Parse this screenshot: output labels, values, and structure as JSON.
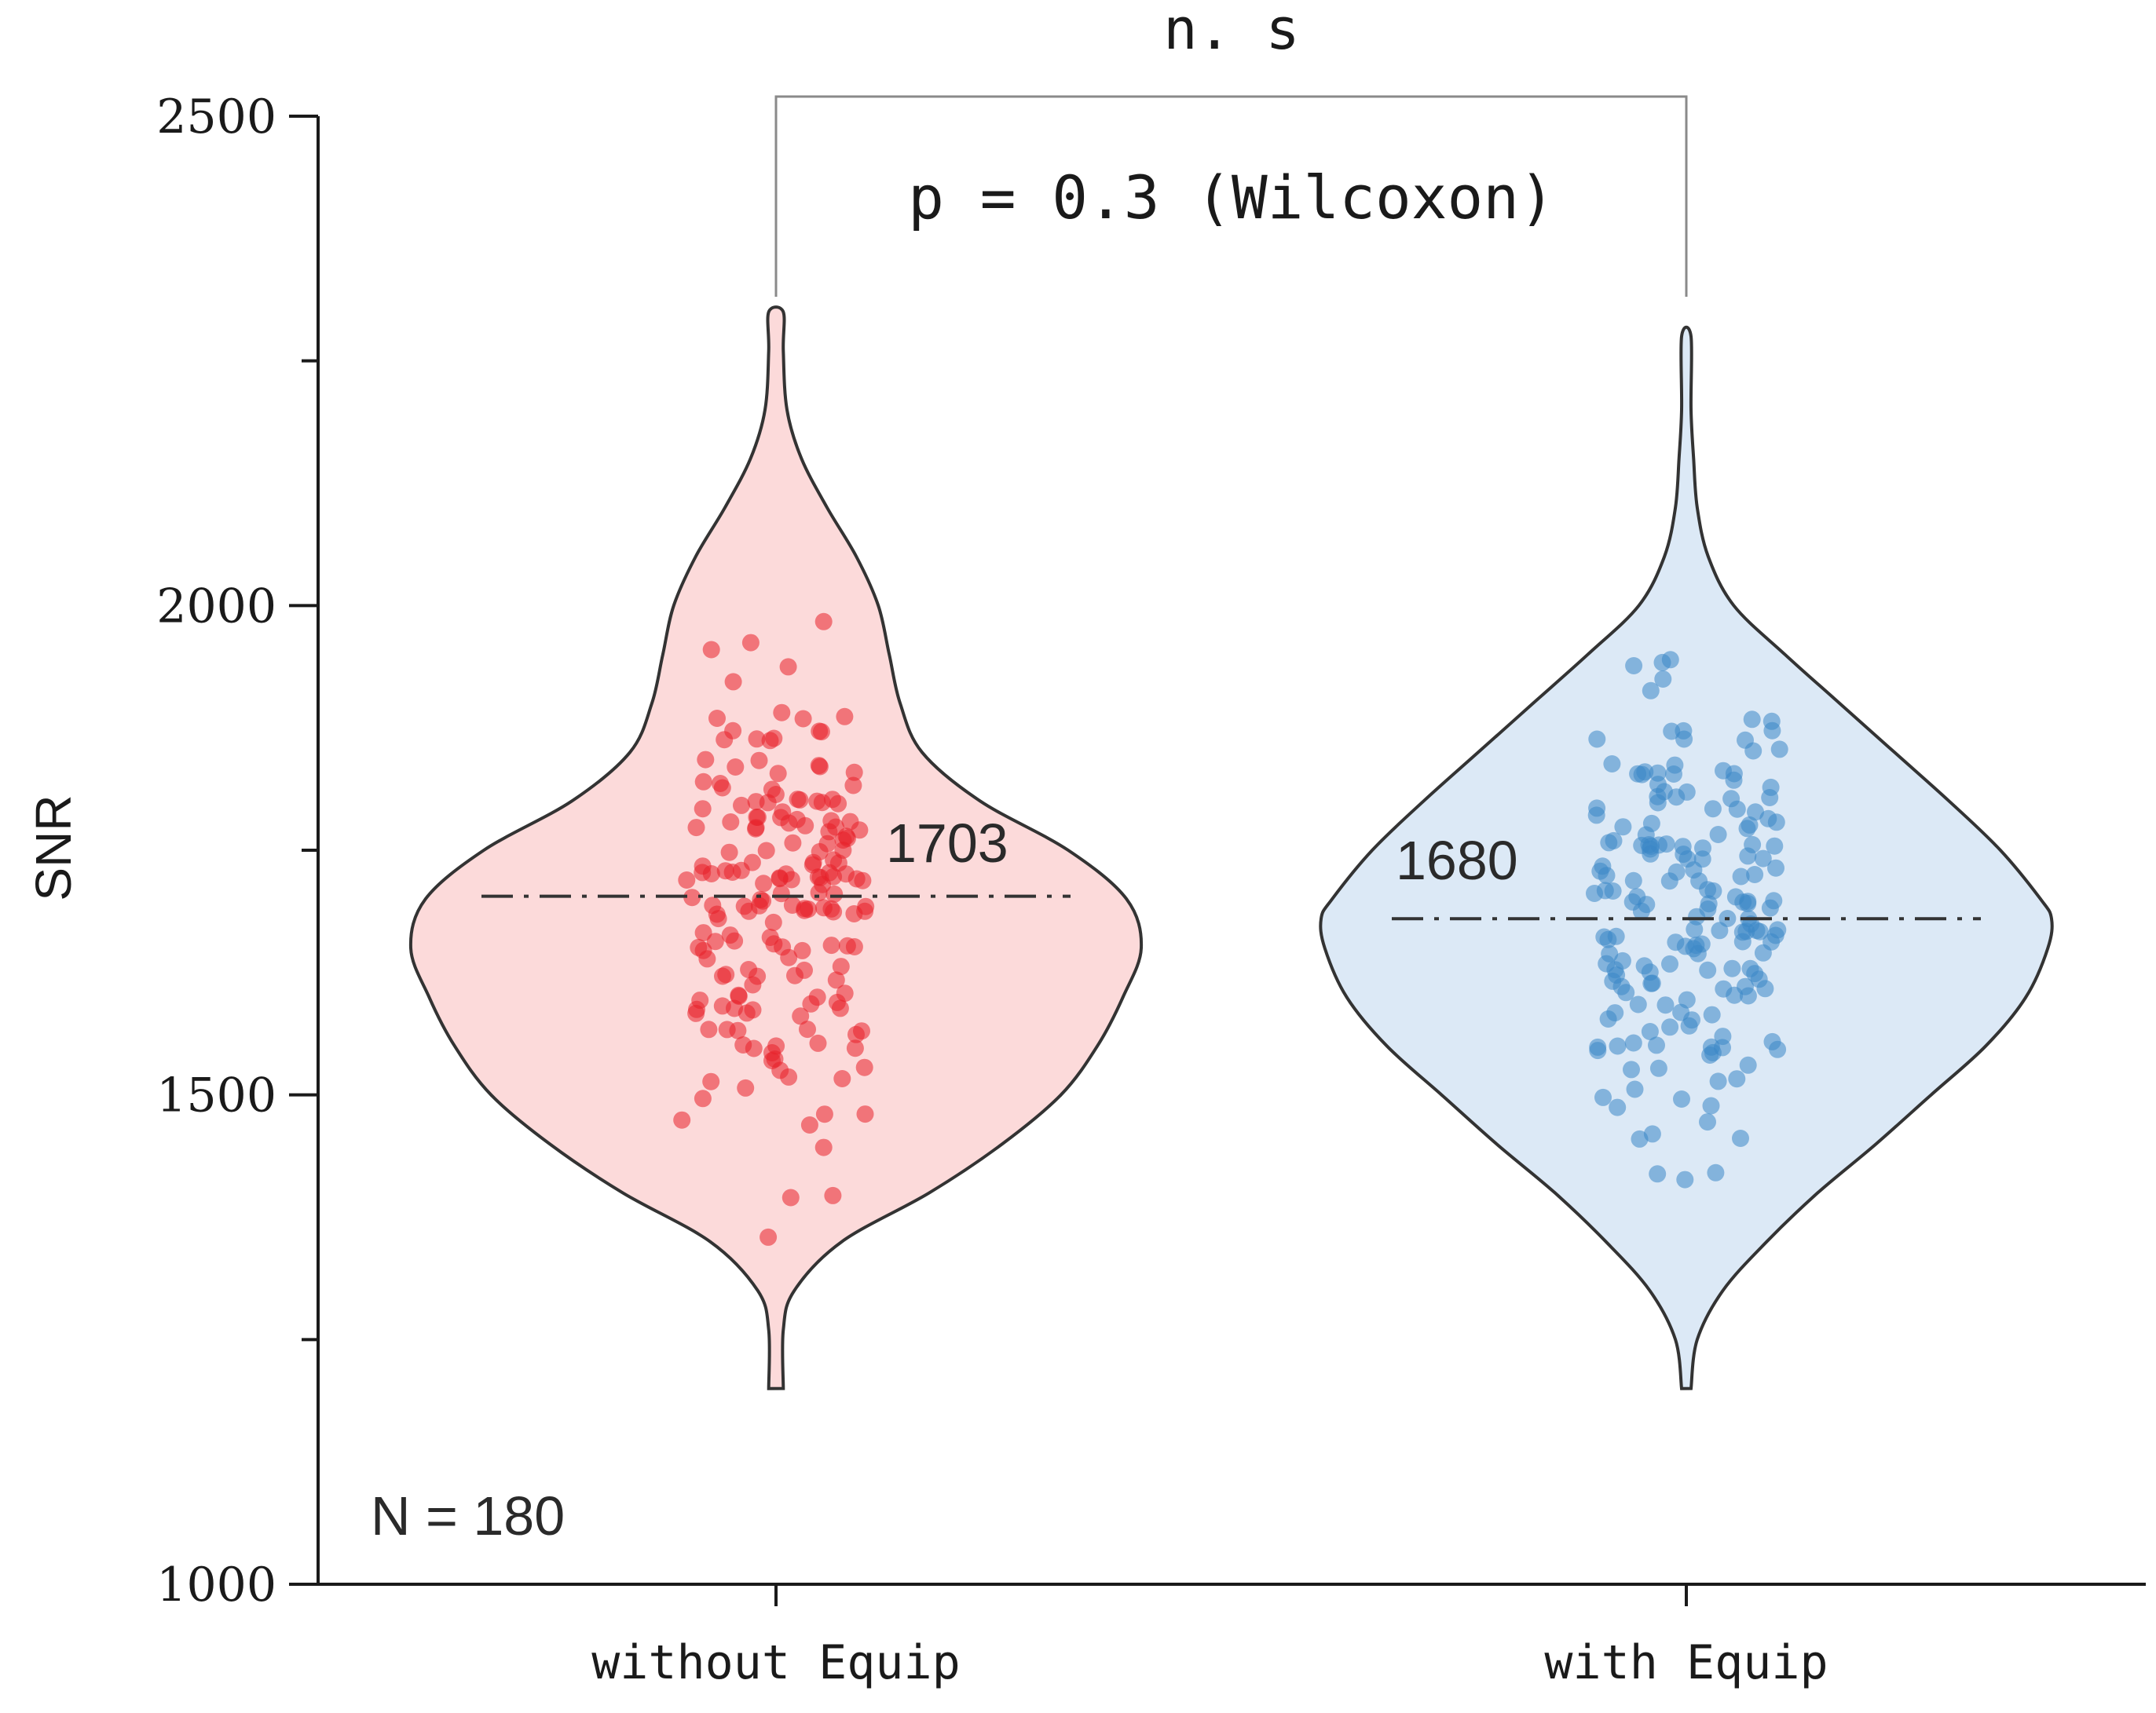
{
  "chart_data": {
    "type": "violin",
    "title": "",
    "xlabel": "",
    "ylabel": "SNR",
    "ylim": [
      1000,
      2500
    ],
    "yticks": [
      1000,
      1500,
      2000,
      2500
    ],
    "categories": [
      "without Equip",
      "with Equip"
    ],
    "series": [
      {
        "name": "without Equip",
        "color": "#e8202a",
        "fill": "#fcdada",
        "n": 180,
        "mean": 1703,
        "mean_label": "1703",
        "range": [
          1200,
          2300
        ],
        "density": [
          [
            1200,
            0.02
          ],
          [
            1260,
            0.02
          ],
          [
            1300,
            0.05
          ],
          [
            1350,
            0.18
          ],
          [
            1400,
            0.42
          ],
          [
            1450,
            0.62
          ],
          [
            1500,
            0.78
          ],
          [
            1550,
            0.88
          ],
          [
            1600,
            0.95
          ],
          [
            1650,
            1.0
          ],
          [
            1700,
            0.96
          ],
          [
            1750,
            0.8
          ],
          [
            1800,
            0.56
          ],
          [
            1850,
            0.4
          ],
          [
            1900,
            0.34
          ],
          [
            1950,
            0.31
          ],
          [
            2000,
            0.28
          ],
          [
            2050,
            0.22
          ],
          [
            2100,
            0.14
          ],
          [
            2150,
            0.07
          ],
          [
            2200,
            0.03
          ],
          [
            2260,
            0.02
          ],
          [
            2300,
            0.02
          ]
        ]
      },
      {
        "name": "with Equip",
        "color": "#3a86c6",
        "fill": "#dce9f6",
        "n": 180,
        "mean": 1680,
        "mean_label": "1680",
        "range": [
          1200,
          2275
        ],
        "density": [
          [
            1200,
            0.0
          ],
          [
            1250,
            0.03
          ],
          [
            1300,
            0.1
          ],
          [
            1350,
            0.22
          ],
          [
            1400,
            0.36
          ],
          [
            1450,
            0.52
          ],
          [
            1500,
            0.67
          ],
          [
            1550,
            0.82
          ],
          [
            1600,
            0.93
          ],
          [
            1650,
            0.99
          ],
          [
            1680,
            1.0
          ],
          [
            1700,
            0.97
          ],
          [
            1750,
            0.86
          ],
          [
            1800,
            0.72
          ],
          [
            1850,
            0.57
          ],
          [
            1900,
            0.42
          ],
          [
            1950,
            0.27
          ],
          [
            2000,
            0.13
          ],
          [
            2050,
            0.06
          ],
          [
            2100,
            0.03
          ],
          [
            2150,
            0.02
          ],
          [
            2200,
            0.01
          ],
          [
            2275,
            0.0
          ]
        ]
      }
    ],
    "annotations": {
      "significance": "n. s",
      "test": "p = 0.3 (Wilcoxon)",
      "sample_size": "N = 180"
    }
  }
}
